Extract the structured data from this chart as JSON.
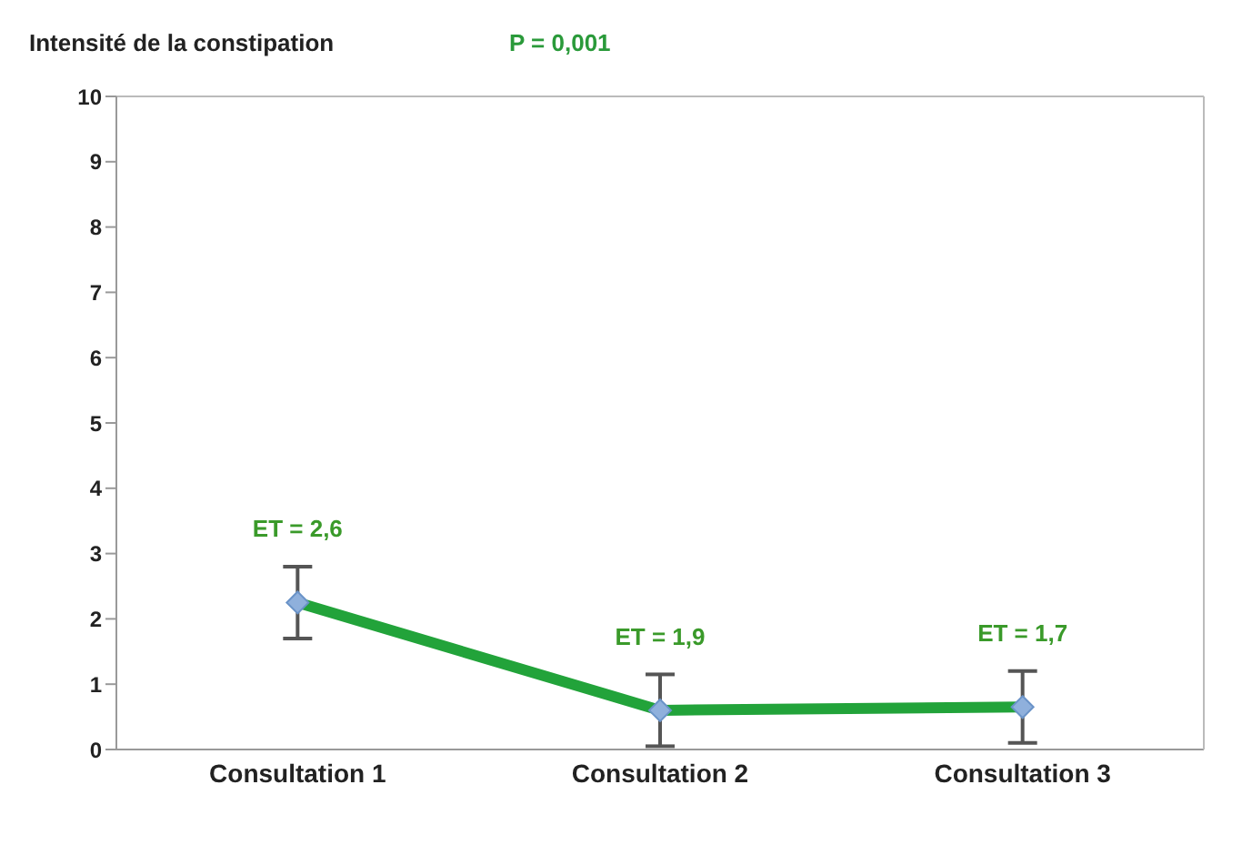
{
  "chart_data": {
    "type": "line",
    "ylabel": "Intensité de la constipation",
    "categories": [
      "Consultation 1",
      "Consultation 2",
      "Consultation 3"
    ],
    "series": [
      {
        "color": "#22a33a",
        "values": [
          2.25,
          0.6,
          0.65
        ],
        "errors": [
          0.55,
          0.55,
          0.55
        ]
      }
    ],
    "ylim": [
      0,
      10
    ],
    "yticks": [
      0,
      1,
      2,
      3,
      4,
      5,
      6,
      7,
      8,
      9,
      10
    ],
    "grid": false,
    "legend": false,
    "marker": "diamond",
    "line_style": "solid",
    "annotations": [
      "P = 0,001",
      {
        "text": "ET = 2,6",
        "x": "Consultation 1",
        "y": 2.25
      },
      {
        "text": "ET = 1,9",
        "x": "Consultation 2",
        "y": 0.6
      },
      {
        "text": "ET = 1,7",
        "x": "Consultation 3",
        "y": 0.65
      }
    ]
  }
}
